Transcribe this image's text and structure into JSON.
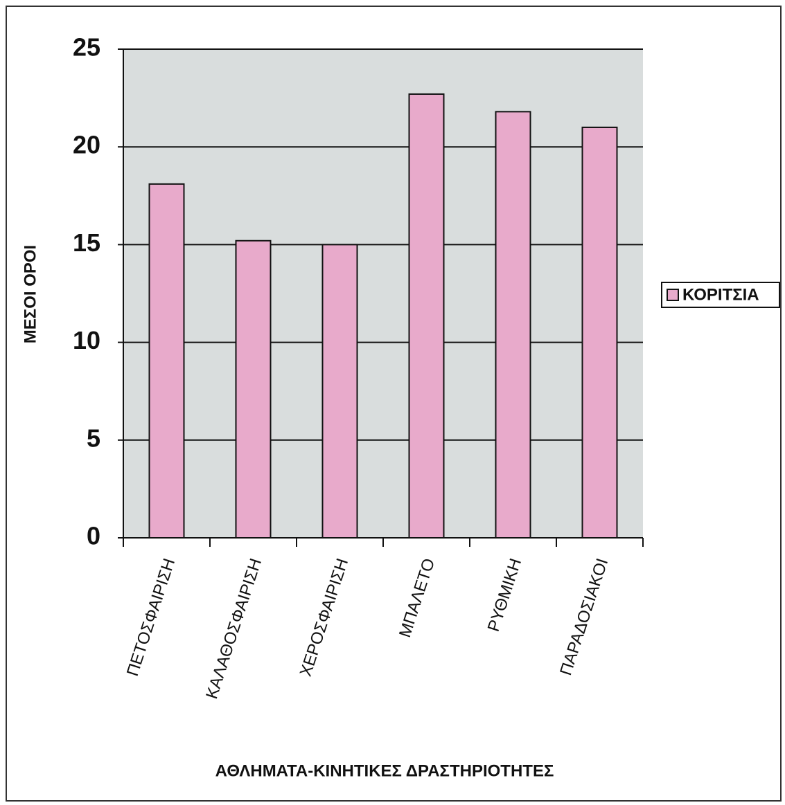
{
  "chart_data": {
    "type": "bar",
    "x_label": "ΑΘΛΗΜΑΤΑ-ΚΙΝΗΤΙΚΕΣ ΔΡΑΣΤΗΡΙΟΤΗΤΕΣ",
    "y_label": "ΜΕΣΟΙ ΟΡΟΙ",
    "categories": [
      "ΠΕΤΟΣΦΑΙΡΙΣΗ",
      "ΚΑΛΑΘΟΣΦΑΙΡΙΣΗ",
      "ΧΕΡΟΣΦΑΙΡΙΣΗ",
      "ΜΠΑΛΕΤΟ",
      "ΡΥΘΜΙΚΗ",
      "ΠΑΡΑΔΟΣΙΑΚΟΙ"
    ],
    "series": [
      {
        "name": "ΚΟΡΙΤΣΙΑ",
        "color": "#e8aacb",
        "values": [
          18.1,
          15.2,
          15.0,
          22.7,
          21.8,
          21.0
        ]
      }
    ],
    "ylim": [
      0,
      25
    ],
    "yticks": [
      0,
      5,
      10,
      15,
      20,
      25
    ],
    "grid": true,
    "legend": "right"
  }
}
